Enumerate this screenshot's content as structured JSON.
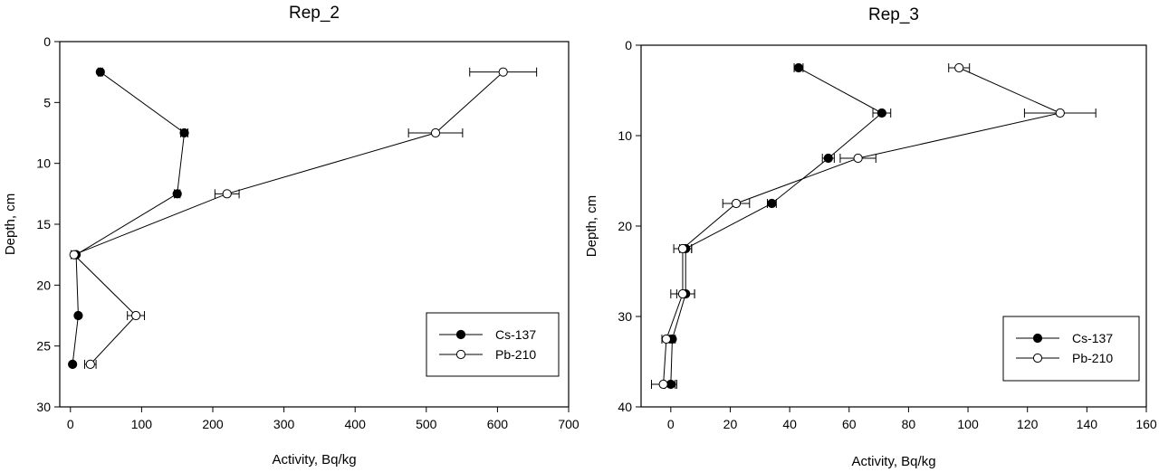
{
  "chart_data": [
    {
      "type": "scatter",
      "mode": "lines+markers",
      "title": "Rep_2",
      "xlabel": "Activity, Bq/kg",
      "ylabel": "Depth, cm",
      "xlim": [
        -15,
        700
      ],
      "ylim": [
        30,
        0
      ],
      "y_inverted": true,
      "xticks": [
        0,
        100,
        200,
        300,
        400,
        500,
        600,
        700
      ],
      "yticks": [
        0,
        5,
        10,
        15,
        20,
        25,
        30
      ],
      "grid": false,
      "legend_position": "bottom-right",
      "series": [
        {
          "name": "Cs-137",
          "marker": "filled-circle",
          "x": [
            42,
            160,
            150,
            8,
            11,
            3
          ],
          "y": [
            2.5,
            7.5,
            12.5,
            17.5,
            22.5,
            26.5
          ],
          "x_err": [
            3,
            5,
            4,
            1,
            1,
            1
          ]
        },
        {
          "name": "Pb-210",
          "marker": "open-circle",
          "x": [
            608,
            513,
            220,
            5,
            92,
            28
          ],
          "y": [
            2.5,
            7.5,
            12.5,
            17.5,
            22.5,
            26.5
          ],
          "x_err": [
            47,
            38,
            17,
            4,
            12,
            8
          ]
        }
      ]
    },
    {
      "type": "scatter",
      "mode": "lines+markers",
      "title": "Rep_3",
      "xlabel": "Activity, Bq/kg",
      "ylabel": "Depth, cm",
      "xlim": [
        -10,
        160
      ],
      "ylim": [
        40,
        0
      ],
      "y_inverted": true,
      "xticks": [
        0,
        20,
        40,
        60,
        80,
        100,
        120,
        140,
        160
      ],
      "yticks": [
        0,
        10,
        20,
        30,
        40
      ],
      "grid": false,
      "legend_position": "bottom-right",
      "series": [
        {
          "name": "Cs-137",
          "marker": "filled-circle",
          "x": [
            43,
            71,
            53,
            34,
            5,
            5,
            0.5,
            0
          ],
          "y": [
            2.5,
            7.5,
            12.5,
            17.5,
            22.5,
            27.5,
            32.5,
            37.5
          ],
          "x_err": [
            1.5,
            3,
            2,
            1.5,
            2,
            3,
            1,
            2
          ]
        },
        {
          "name": "Pb-210",
          "marker": "open-circle",
          "x": [
            97,
            131,
            63,
            22,
            4,
            4,
            -1.5,
            -2.5
          ],
          "y": [
            2.5,
            7.5,
            12.5,
            17.5,
            22.5,
            27.5,
            32.5,
            37.5
          ],
          "x_err": [
            3.5,
            12,
            6,
            4.5,
            3,
            4,
            1.5,
            4
          ]
        }
      ]
    }
  ]
}
